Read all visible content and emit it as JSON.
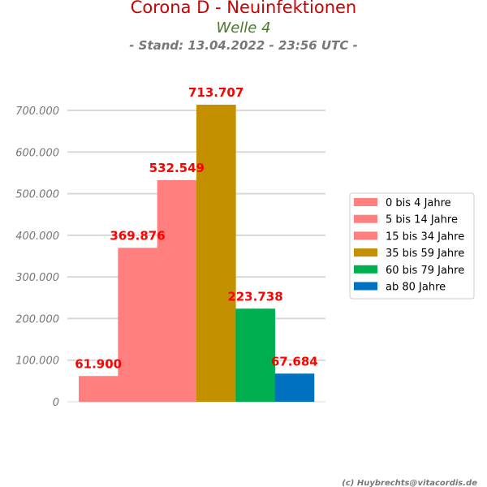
{
  "header": {
    "title": "Corona D - Neuinfektionen",
    "subtitle": "Welle 4",
    "stand": "- Stand: 13.04.2022 - 23:56 UTC -"
  },
  "credit": "(c) Huybrechts@vitacordis.de",
  "colors": {
    "title": "#cc0000",
    "subtitle": "#4a7a2a",
    "stand": "#777777",
    "datalabel": "#ff0000",
    "grid": "#d9d9d9"
  },
  "chart_data": {
    "type": "bar",
    "categories": [
      "0 bis 4 Jahre",
      "5 bis 14 Jahre",
      "15 bis 34 Jahre",
      "35 bis 59 Jahre",
      "60 bis 79 Jahre",
      "ab 80 Jahre"
    ],
    "values": [
      61900,
      369876,
      532549,
      713707,
      223738,
      67684
    ],
    "value_labels": [
      "61.900",
      "369.876",
      "532.549",
      "713.707",
      "223.738",
      "67.684"
    ],
    "bar_colors": [
      "#ff7f7f",
      "#ff7f7f",
      "#ff7f7f",
      "#c39000",
      "#00b050",
      "#0070c0"
    ],
    "yticks": [
      0,
      100000,
      200000,
      300000,
      400000,
      500000,
      600000,
      700000
    ],
    "ytick_labels": [
      "0",
      "100.000",
      "200.000",
      "300.000",
      "400.000",
      "500.000",
      "600.000",
      "700.000"
    ],
    "ylim": [
      0,
      713707
    ],
    "grid": true,
    "legend_position": "right"
  }
}
